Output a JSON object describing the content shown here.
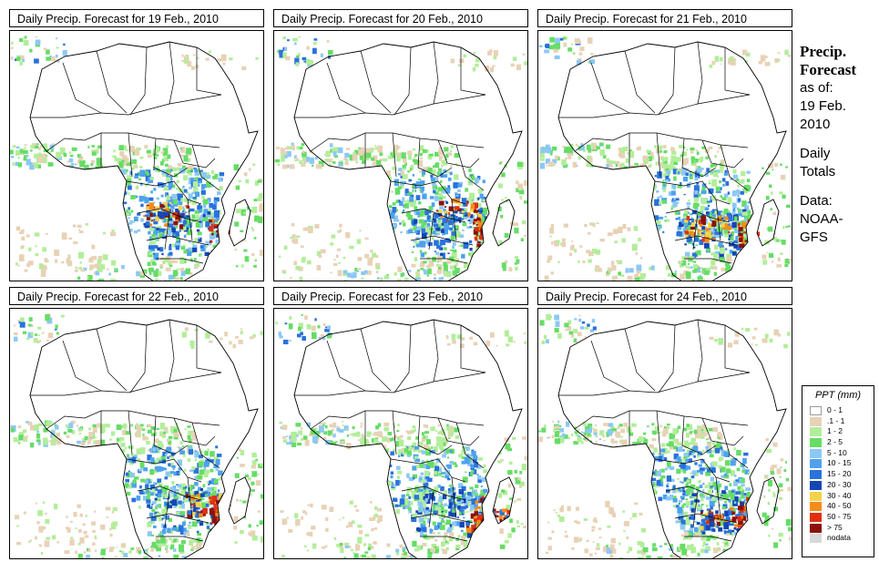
{
  "panels": [
    {
      "title": "Daily Precip. Forecast for  19 Feb., 2010",
      "id": "19"
    },
    {
      "title": "Daily Precip. Forecast for  20 Feb., 2010",
      "id": "20"
    },
    {
      "title": "Daily Precip. Forecast for  21 Feb., 2010",
      "id": "21"
    },
    {
      "title": "Daily Precip. Forecast for  22 Feb., 2010",
      "id": "22"
    },
    {
      "title": "Daily Precip. Forecast for  23 Feb., 2010",
      "id": "23"
    },
    {
      "title": "Daily Precip. Forecast for  24 Feb., 2010",
      "id": "24"
    }
  ],
  "sidebar": {
    "title_line1": "Precip.",
    "title_line2": "Forecast",
    "asof": "as of:",
    "date1": "19 Feb.",
    "date2": "2010",
    "daily": "Daily",
    "totals": "Totals",
    "data": "Data:",
    "source1": "NOAA-",
    "source2": "GFS"
  },
  "legend": {
    "title": "PPT (mm)",
    "items": [
      {
        "label": "0 - 1",
        "color": "#ffffff"
      },
      {
        "label": ".1 - 1",
        "color": "#e8d2b6"
      },
      {
        "label": "1 - 2",
        "color": "#b2ee9a"
      },
      {
        "label": "2 - 5",
        "color": "#66dd66"
      },
      {
        "label": "5 - 10",
        "color": "#8cc8f4"
      },
      {
        "label": "10 - 15",
        "color": "#4ea2ee"
      },
      {
        "label": "15 - 20",
        "color": "#2a72dc"
      },
      {
        "label": "20 - 30",
        "color": "#1446b4"
      },
      {
        "label": "30 - 40",
        "color": "#f4d24a"
      },
      {
        "label": "40 - 50",
        "color": "#f48c1c"
      },
      {
        "label": "50 - 75",
        "color": "#e03010"
      },
      {
        "label": "> 75",
        "color": "#8a1208"
      },
      {
        "label": "nodata",
        "color": "#d8d8d8"
      }
    ]
  }
}
